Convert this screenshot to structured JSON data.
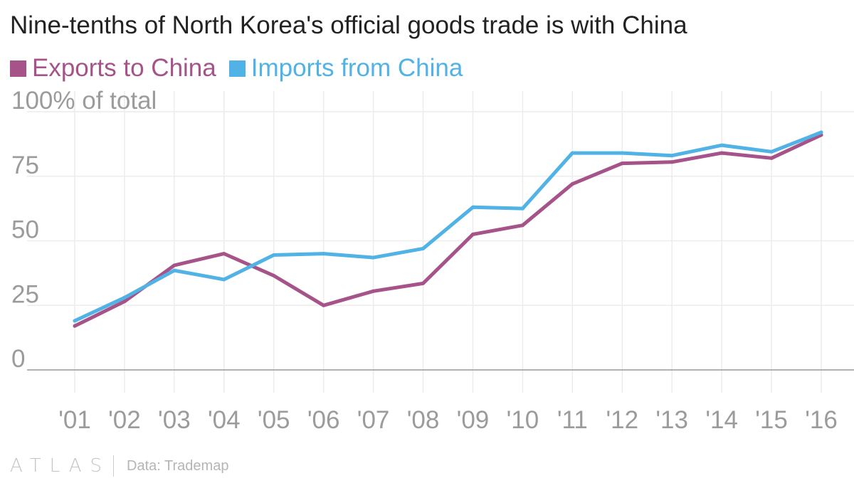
{
  "header": {
    "title": "Nine-tenths of North Korea's official goods trade is with China"
  },
  "footer": {
    "logo": "ATLAS",
    "source": "Data: Trademap"
  },
  "colors": {
    "exports": "#a6538a",
    "imports": "#51b2e5",
    "grid": "#ececec",
    "axis": "#999999",
    "tick": "#9b9b9b"
  },
  "chart_data": {
    "type": "line",
    "title": "Nine-tenths of North Korea's official goods trade is with China",
    "xlabel": "",
    "ylabel": "",
    "y_unit_label": "100% of total",
    "ylim": [
      0,
      100
    ],
    "y_ticks": [
      0,
      25,
      50,
      75,
      100
    ],
    "y_tick_labels": [
      "0",
      "25",
      "50",
      "75",
      "100% of total"
    ],
    "categories": [
      "'01",
      "'02",
      "'03",
      "'04",
      "'05",
      "'06",
      "'07",
      "'08",
      "'09",
      "'10",
      "'11",
      "'12",
      "'13",
      "'14",
      "'15",
      "'16"
    ],
    "legend_position": "top-left",
    "grid": true,
    "series": [
      {
        "name": "Exports to China",
        "color": "#a6538a",
        "values": [
          17,
          26.5,
          40.5,
          45,
          36.5,
          25,
          30.5,
          33.5,
          52.5,
          56,
          72,
          80,
          80.5,
          84,
          82,
          91
        ]
      },
      {
        "name": "Imports from China",
        "color": "#51b2e5",
        "values": [
          19,
          28,
          38.5,
          35,
          44.5,
          45,
          43.5,
          47,
          63,
          62.5,
          84,
          84,
          83,
          87,
          84.5,
          92
        ]
      }
    ]
  }
}
